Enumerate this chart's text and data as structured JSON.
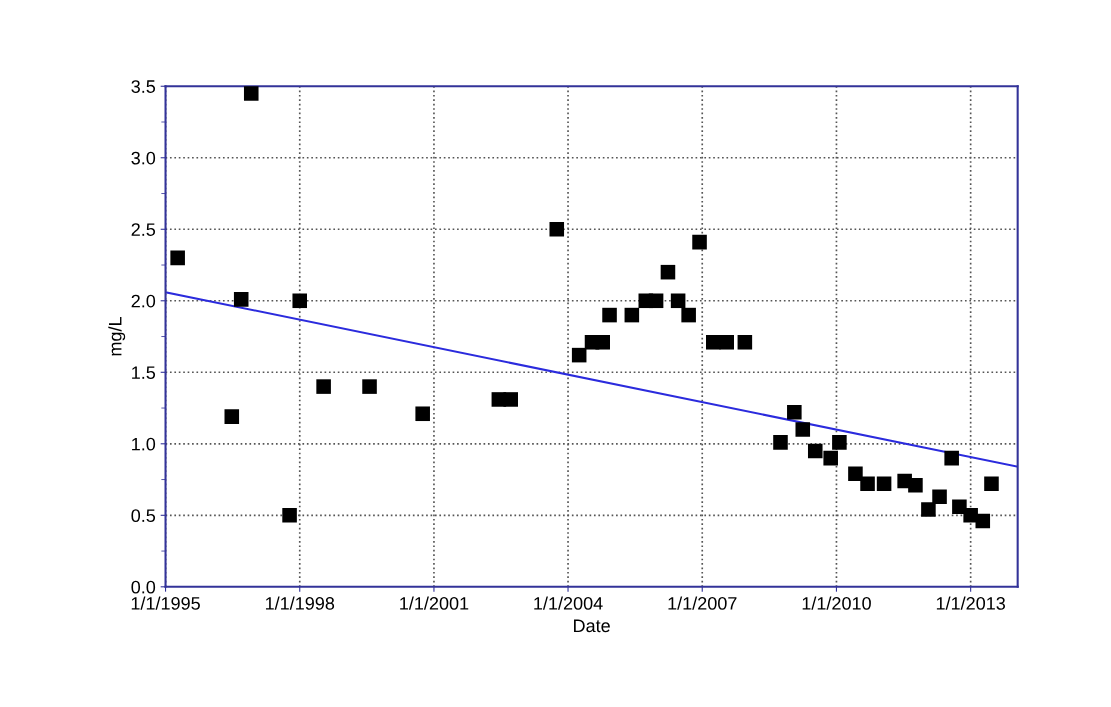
{
  "chart_data": {
    "type": "scatter",
    "xlabel": "Date",
    "ylabel": "mg/L",
    "xlim": [
      "1995-01-01",
      "2014-01-20"
    ],
    "ylim": [
      0,
      3.5
    ],
    "xticks": [
      {
        "value": "1995-01-01",
        "label": "1/1/1995"
      },
      {
        "value": "1998-01-01",
        "label": "1/1/1998"
      },
      {
        "value": "2001-01-01",
        "label": "1/1/2001"
      },
      {
        "value": "2004-01-01",
        "label": "1/1/2004"
      },
      {
        "value": "2007-01-01",
        "label": "1/1/2007"
      },
      {
        "value": "2010-01-01",
        "label": "1/1/2010"
      },
      {
        "value": "2013-01-01",
        "label": "1/1/2013"
      }
    ],
    "yticks": [
      "0.0",
      {
        "value": 0.25,
        "label": null
      },
      {
        "value": 0.5,
        "label": "0.5"
      },
      {
        "value": 0.75,
        "label": null
      },
      {
        "value": 1.0,
        "label": "1.0"
      },
      {
        "value": 1.25,
        "label": null
      },
      {
        "value": 1.5,
        "label": "1.5"
      },
      {
        "value": 1.75,
        "label": null
      },
      {
        "value": 2.0,
        "label": "2.0"
      },
      {
        "value": 2.25,
        "label": null
      },
      {
        "value": 2.5,
        "label": "2.5"
      },
      {
        "value": 2.75,
        "label": null
      },
      {
        "value": 3.0,
        "label": "3.0"
      },
      {
        "value": 3.25,
        "label": null
      },
      {
        "value": 3.5,
        "label": "3.5"
      }
    ],
    "grid": true,
    "marker": "square",
    "series": [
      {
        "color": "#000000",
        "x": [
          "1995-04-10",
          "1996-06-25",
          "1996-09-10",
          "1996-12-01",
          "1997-10-10",
          "1998-01-01",
          "1998-07-15",
          "1999-07-25",
          "2000-10-01",
          "2002-06-15",
          "2002-09-20",
          "2003-10-01",
          "2004-04-01",
          "2004-07-15",
          "2004-10-10",
          "2004-12-05",
          "2005-06-05",
          "2005-09-27",
          "2005-12-20",
          "2006-03-27",
          "2006-06-18",
          "2006-09-12",
          "2006-12-10",
          "2007-04-01",
          "2007-07-20",
          "2007-12-15",
          "2008-10-01",
          "2009-01-22",
          "2009-04-01",
          "2009-07-12",
          "2009-11-15",
          "2010-01-25",
          "2010-06-05",
          "2010-09-12",
          "2011-01-25",
          "2011-07-12",
          "2011-10-08",
          "2012-01-22",
          "2012-04-22",
          "2012-07-30",
          "2012-10-01",
          "2013-01-01",
          "2013-04-10",
          "2013-06-20"
        ],
        "values": [
          2.3,
          1.19,
          2.01,
          3.45,
          0.5,
          2.0,
          1.4,
          1.4,
          1.21,
          1.31,
          1.31,
          2.5,
          1.62,
          1.71,
          1.71,
          1.9,
          1.9,
          2.0,
          2.0,
          2.2,
          2.0,
          1.9,
          2.41,
          1.71,
          1.71,
          1.71,
          1.01,
          1.22,
          1.1,
          0.95,
          0.9,
          1.01,
          0.79,
          0.72,
          0.72,
          0.74,
          0.71,
          0.54,
          0.63,
          0.9,
          0.56,
          0.5,
          0.46,
          0.72
        ]
      },
      {
        "type": "line",
        "color": "#2b2bdd",
        "marker": "none",
        "line_style": "solid",
        "x": [
          "1995-01-01",
          "2014-01-20"
        ],
        "values": [
          2.06,
          0.84
        ]
      }
    ]
  }
}
